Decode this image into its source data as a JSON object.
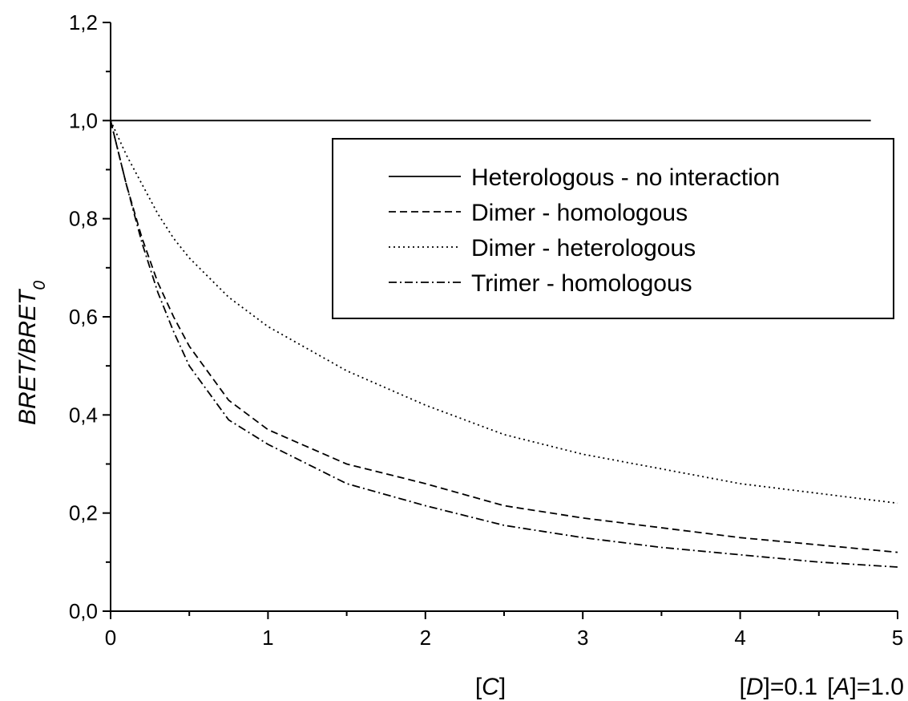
{
  "chart_data": {
    "type": "line",
    "xlabel": {
      "open": "[",
      "var": "C",
      "close": "]"
    },
    "ylabel": {
      "main": "BRET/BRET",
      "sub": "0"
    },
    "annotation": {
      "d_open": "[",
      "d_var": "D",
      "d_rest": "]=0.1",
      "a_open": "[",
      "a_var": "A",
      "a_rest": "]=1.0"
    },
    "xlim": [
      0,
      5
    ],
    "ylim": [
      0,
      1.2
    ],
    "x_ticks": [
      "0",
      "1",
      "2",
      "3",
      "4",
      "5"
    ],
    "y_ticks": [
      "0,0",
      "0,2",
      "0,4",
      "0,6",
      "0,8",
      "1,0",
      "1,2"
    ],
    "legend_position": "upper-right",
    "grid": false,
    "series": [
      {
        "name": "Heterologous - no interaction",
        "dash": "solid",
        "x": [
          0,
          4.83
        ],
        "y": [
          1.0,
          1.0
        ]
      },
      {
        "name": "Dimer - homologous",
        "dash": "dashed",
        "x": [
          0,
          0.1,
          0.2,
          0.3,
          0.4,
          0.5,
          0.75,
          1.0,
          1.5,
          2.0,
          2.5,
          3.0,
          3.5,
          4.0,
          4.5,
          5.0
        ],
        "y": [
          1.0,
          0.87,
          0.76,
          0.67,
          0.6,
          0.54,
          0.43,
          0.37,
          0.3,
          0.26,
          0.215,
          0.19,
          0.17,
          0.15,
          0.135,
          0.12
        ]
      },
      {
        "name": "Dimer - heterologous",
        "dash": "dotted",
        "x": [
          0,
          0.1,
          0.2,
          0.3,
          0.4,
          0.5,
          0.75,
          1.0,
          1.5,
          2.0,
          2.5,
          3.0,
          3.5,
          4.0,
          4.5,
          5.0
        ],
        "y": [
          1.0,
          0.93,
          0.87,
          0.81,
          0.76,
          0.72,
          0.64,
          0.58,
          0.49,
          0.42,
          0.36,
          0.32,
          0.29,
          0.26,
          0.24,
          0.22
        ]
      },
      {
        "name": "Trimer - homologous",
        "dash": "dashdot",
        "x": [
          0,
          0.1,
          0.2,
          0.3,
          0.4,
          0.5,
          0.75,
          1.0,
          1.5,
          2.0,
          2.5,
          3.0,
          3.5,
          4.0,
          4.5,
          5.0
        ],
        "y": [
          1.0,
          0.87,
          0.75,
          0.65,
          0.57,
          0.5,
          0.39,
          0.34,
          0.26,
          0.215,
          0.175,
          0.15,
          0.13,
          0.115,
          0.1,
          0.09
        ]
      }
    ]
  }
}
